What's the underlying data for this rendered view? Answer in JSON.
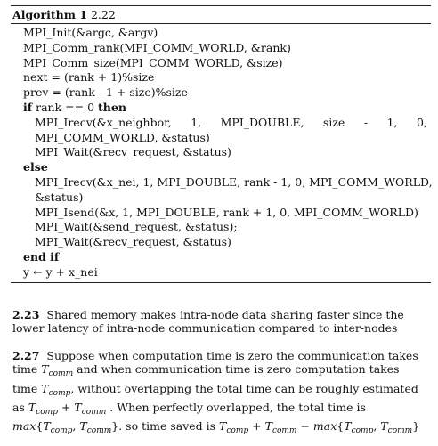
{
  "algorithm": {
    "label": "Algorithm 1",
    "number": "2.22",
    "lines": {
      "l1": "MPI_Init(&argc, &argv)",
      "l2": "MPI_Comm_rank(MPI_COMM_WORLD, &rank)",
      "l3": "MPI_Comm_size(MPI_COMM_WORLD, &size)",
      "l4": "next = (rank + 1)%size",
      "l5": "prev = (rank - 1 + size)%size",
      "if_kw": "if",
      "if_cond": "rank == 0",
      "then_kw": "then",
      "irecv1_parts": [
        "MPI_Irecv(&x_neighbor,",
        "1,",
        "MPI_DOUBLE,",
        "size",
        "-",
        "1,",
        "0,"
      ],
      "irecv1_cont": "MPI_COMM_WORLD, &status)",
      "wait1": "MPI_Wait(&recv_request, &status)",
      "else_kw": "else",
      "irecv2": "MPI_Irecv(&x_nei, 1, MPI_DOUBLE, rank - 1, 0, MPI_COMM_WORLD,",
      "irecv2_cont": "&status)",
      "isend": "MPI_Isend(&x, 1, MPI_DOUBLE, rank + 1, 0, MPI_COMM_WORLD)",
      "wait2": "MPI_Wait(&send_request, &status);",
      "wait3": "MPI_Wait(&recv_request, &status)",
      "endif_kw": "end if",
      "last": "y ← y + x_nei"
    }
  },
  "p223": {
    "num": "2.23",
    "text": "Shared memory makes intra-node data sharing faster since the lower latency of intra-node communication compared to inter-nodes"
  },
  "p227": {
    "num": "2.27",
    "t1": "Suppose when computation time is zero the communication takes time",
    "T": "T",
    "comm": "comm",
    "comp": "comp",
    "t2": "and when communication time is zero computation takes time",
    "t3": "without overlapping the total time can be roughly estimated as",
    "plus": "+",
    "t4": ". When perfectly overlapped, the total time is",
    "max": "max",
    "t5": ". so time saved is",
    "minus": "−",
    "comma": ",",
    "lbrace": "{",
    "rbrace": "}"
  }
}
